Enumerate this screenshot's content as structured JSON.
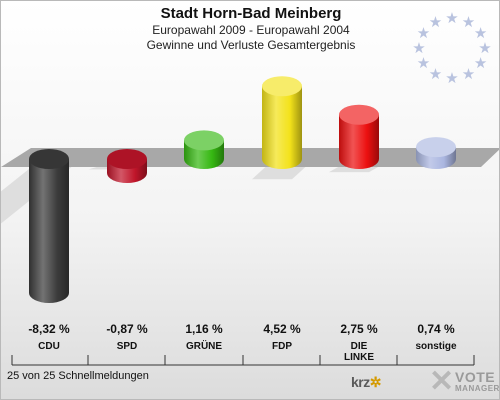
{
  "title": "Stadt Horn-Bad Meinberg",
  "subtitle1": "Europawahl 2009 - Europawahl 2004",
  "subtitle2": "Gewinne und Verluste Gesamtergebnis",
  "footer_text": "25 von 25 Schnellmeldungen",
  "logos": {
    "krz": "krz",
    "vote": "VOTE",
    "manager": "MANAGER",
    "vote_icon": "x-mark-icon",
    "krz_icon": "krz-emblem-icon"
  },
  "decor": {
    "eu_stars_icon": "eu-stars-icon",
    "star_count": 12,
    "star_color": "#b9c3df"
  },
  "colors": {
    "baseline": "#a8a8a8",
    "shadow": "#d8d8d8"
  },
  "chart_data": {
    "type": "bar",
    "title": "Stadt Horn-Bad Meinberg",
    "categories": [
      "CDU",
      "SPD",
      "GRÜNE",
      "FDP",
      "DIE\nLINKE",
      "sonstige"
    ],
    "values": [
      -8.32,
      -0.87,
      1.16,
      4.52,
      2.75,
      0.74
    ],
    "value_labels": [
      "-8,32 %",
      "-0,87 %",
      "1,16 %",
      "4,52 %",
      "2,75 %",
      "0,74 %"
    ],
    "colors": [
      "#3c3c3c",
      "#c0152a",
      "#36b812",
      "#f3e21a",
      "#ec1010",
      "#aab6e0"
    ],
    "ylim": [
      -9,
      6
    ],
    "xlabel": "",
    "ylabel": "",
    "grid": false,
    "legend": "none"
  }
}
